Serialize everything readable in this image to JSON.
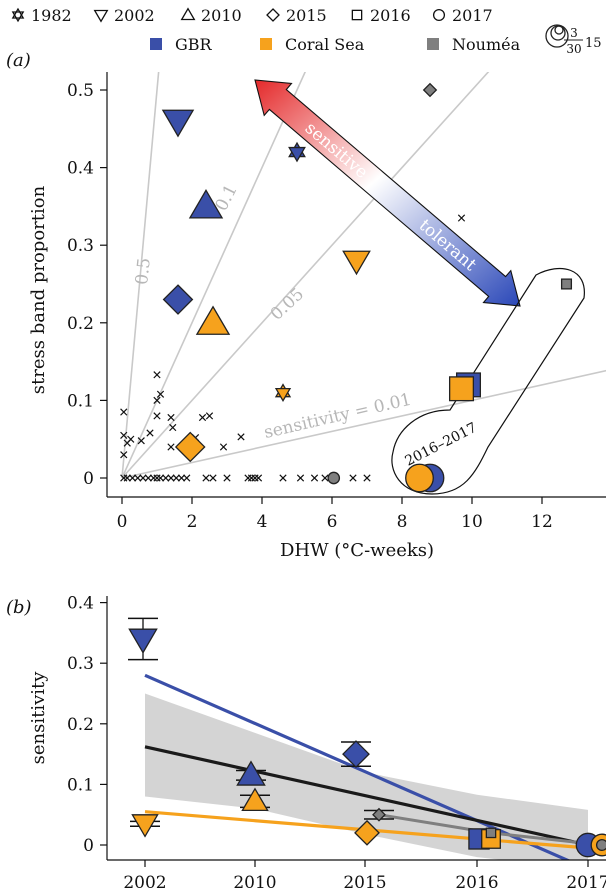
{
  "legend": {
    "years": [
      {
        "label": "1982",
        "shape": "star"
      },
      {
        "label": "2002",
        "shape": "tri-down"
      },
      {
        "label": "2010",
        "shape": "tri-up"
      },
      {
        "label": "2015",
        "shape": "diamond"
      },
      {
        "label": "2016",
        "shape": "square"
      },
      {
        "label": "2017",
        "shape": "circle"
      }
    ],
    "regions": [
      {
        "label": "GBR",
        "color": "#3a4fa8"
      },
      {
        "label": "Coral Sea",
        "color": "#f6a21d"
      },
      {
        "label": "Nouméa",
        "color": "#7f7f7f"
      }
    ],
    "size_key": {
      "top": "3",
      "bottom": "30",
      "right": "15"
    }
  },
  "panel_a": {
    "label": "(a)",
    "xlabel": "DHW (°C-weeks)",
    "ylabel": "stress band proportion",
    "xticks": [
      "0",
      "2",
      "4",
      "6",
      "8",
      "10",
      "12"
    ],
    "yticks": [
      "0",
      "0.1",
      "0.2",
      "0.3",
      "0.4",
      "0.5"
    ],
    "ray_labels": [
      "0.5",
      "0.1",
      "0.05",
      "sensitivity = 0.01"
    ],
    "arrow_top": "sensitive",
    "arrow_bottom": "tolerant",
    "cluster_label": "2016–2017"
  },
  "panel_b": {
    "label": "(b)",
    "ylabel": "sensitivity",
    "xticks": [
      "2002",
      "2010",
      "2015",
      "2016",
      "2017"
    ],
    "yticks": [
      "0",
      "0.1",
      "0.2",
      "0.3",
      "0.4"
    ]
  },
  "chart_data": [
    {
      "type": "scatter",
      "panel": "(a)",
      "xlabel": "DHW (°C-weeks)",
      "ylabel": "stress band proportion",
      "xlim": [
        -0.3,
        13.5
      ],
      "ylim": [
        -0.015,
        0.53
      ],
      "reference_lines": [
        {
          "label": "0.5",
          "sensitivity": 0.5
        },
        {
          "label": "0.1",
          "sensitivity": 0.1
        },
        {
          "label": "0.05",
          "sensitivity": 0.05
        },
        {
          "label": "sensitivity = 0.01",
          "sensitivity": 0.01
        }
      ],
      "points": [
        {
          "year": "1982",
          "region": "GBR",
          "x": 5.0,
          "y": 0.42,
          "size": 1.0
        },
        {
          "year": "1982",
          "region": "Coral Sea",
          "x": 4.6,
          "y": 0.11,
          "size": 0.9
        },
        {
          "year": "2002",
          "region": "GBR",
          "x": 1.6,
          "y": 0.46,
          "size": 1.6
        },
        {
          "year": "2002",
          "region": "Coral Sea",
          "x": 6.7,
          "y": 0.28,
          "size": 1.4
        },
        {
          "year": "2010",
          "region": "GBR",
          "x": 2.4,
          "y": 0.35,
          "size": 1.7
        },
        {
          "year": "2010",
          "region": "Coral Sea",
          "x": 2.6,
          "y": 0.2,
          "size": 1.7
        },
        {
          "year": "2015",
          "region": "GBR",
          "x": 1.6,
          "y": 0.23,
          "size": 1.6
        },
        {
          "year": "2015",
          "region": "Coral Sea",
          "x": 1.95,
          "y": 0.04,
          "size": 1.6
        },
        {
          "year": "2015",
          "region": "Nouméa",
          "x": 8.8,
          "y": 0.5,
          "size": 0.7
        },
        {
          "year": "2016",
          "region": "GBR",
          "x": 9.9,
          "y": 0.12,
          "size": 1.7
        },
        {
          "year": "2016",
          "region": "Coral Sea",
          "x": 9.7,
          "y": 0.115,
          "size": 1.7
        },
        {
          "year": "2016",
          "region": "Nouméa",
          "x": 12.7,
          "y": 0.25,
          "size": 0.7
        },
        {
          "year": "2017",
          "region": "GBR",
          "x": 8.8,
          "y": 0.0,
          "size": 1.7
        },
        {
          "year": "2017",
          "region": "Coral Sea",
          "x": 8.5,
          "y": 0.0,
          "size": 1.7
        },
        {
          "year": "2017",
          "region": "Nouméa",
          "x": 6.05,
          "y": 0.0,
          "size": 0.7
        }
      ],
      "minor_points": [
        [
          0.05,
          0.085
        ],
        [
          0.05,
          0.055
        ],
        [
          0.15,
          0.045
        ],
        [
          0.25,
          0.05
        ],
        [
          0.05,
          0.03
        ],
        [
          0.55,
          0.048
        ],
        [
          0.8,
          0.058
        ],
        [
          1.0,
          0.133
        ],
        [
          1.0,
          0.1
        ],
        [
          1.1,
          0.108
        ],
        [
          1.0,
          0.08
        ],
        [
          1.4,
          0.078
        ],
        [
          1.45,
          0.065
        ],
        [
          2.3,
          0.078
        ],
        [
          2.5,
          0.08
        ],
        [
          1.4,
          0.04
        ],
        [
          2.1,
          0.052
        ],
        [
          2.9,
          0.04
        ],
        [
          3.4,
          0.053
        ],
        [
          9.7,
          0.335
        ],
        [
          0.05,
          0.0
        ],
        [
          0.15,
          0.0
        ],
        [
          0.3,
          0.0
        ],
        [
          0.45,
          0.0
        ],
        [
          0.6,
          0.0
        ],
        [
          0.75,
          0.0
        ],
        [
          0.9,
          0.0
        ],
        [
          1.0,
          0.0
        ],
        [
          1.1,
          0.0
        ],
        [
          1.25,
          0.0
        ],
        [
          1.4,
          0.0
        ],
        [
          1.55,
          0.0
        ],
        [
          1.7,
          0.0
        ],
        [
          1.85,
          0.0
        ],
        [
          2.4,
          0.0
        ],
        [
          2.6,
          0.0
        ],
        [
          3.0,
          0.0
        ],
        [
          3.6,
          0.0
        ],
        [
          3.7,
          0.0
        ],
        [
          3.8,
          0.0
        ],
        [
          3.9,
          0.0
        ],
        [
          4.6,
          0.0
        ],
        [
          5.1,
          0.0
        ],
        [
          5.5,
          0.0
        ],
        [
          5.8,
          0.0
        ],
        [
          6.6,
          0.0
        ],
        [
          7.0,
          0.0
        ]
      ]
    },
    {
      "type": "line",
      "panel": "(b)",
      "xlabel": "",
      "ylabel": "sensitivity",
      "categories": [
        "2002",
        "2010",
        "2015",
        "2016",
        "2017"
      ],
      "ylim": [
        -0.015,
        0.4
      ],
      "series": [
        {
          "name": "GBR",
          "color": "#3a4fa8",
          "shapes": [
            "tri-down",
            "tri-up",
            "diamond",
            "square",
            "circle"
          ],
          "values": [
            0.34,
            0.115,
            0.15,
            0.01,
            0.0
          ],
          "errors": [
            0.034,
            0.008,
            0.02,
            0.0,
            0.0
          ]
        },
        {
          "name": "Coral Sea",
          "color": "#f6a21d",
          "shapes": [
            "tri-down",
            "tri-up",
            "diamond",
            "square",
            "circle"
          ],
          "values": [
            0.035,
            0.072,
            0.02,
            0.01,
            0.0
          ],
          "errors": [
            0.004,
            0.01,
            0.0,
            0.0,
            0.0
          ]
        },
        {
          "name": "Nouméa",
          "color": "#7f7f7f",
          "shapes": [
            "",
            "",
            "diamond",
            "square",
            "circle"
          ],
          "values": [
            null,
            null,
            0.05,
            0.02,
            0.0
          ],
          "errors": [
            0,
            0,
            0.007,
            0,
            0
          ]
        }
      ],
      "trends": [
        {
          "color": "#3a4fa8",
          "from": [
            2002,
            0.28
          ],
          "to": [
            2017,
            -0.04
          ]
        },
        {
          "color": "#f6a21d",
          "from": [
            2002,
            0.055
          ],
          "to": [
            2017,
            -0.005
          ]
        },
        {
          "color": "#1a1a1a",
          "from": [
            2002,
            0.162
          ],
          "to": [
            2017,
            0.0
          ]
        }
      ],
      "confidence_band": {
        "upper": [
          0.25,
          0.185,
          0.12,
          0.083,
          0.058
        ],
        "lower": [
          0.08,
          0.06,
          0.018,
          -0.02,
          -0.04
        ]
      }
    }
  ]
}
